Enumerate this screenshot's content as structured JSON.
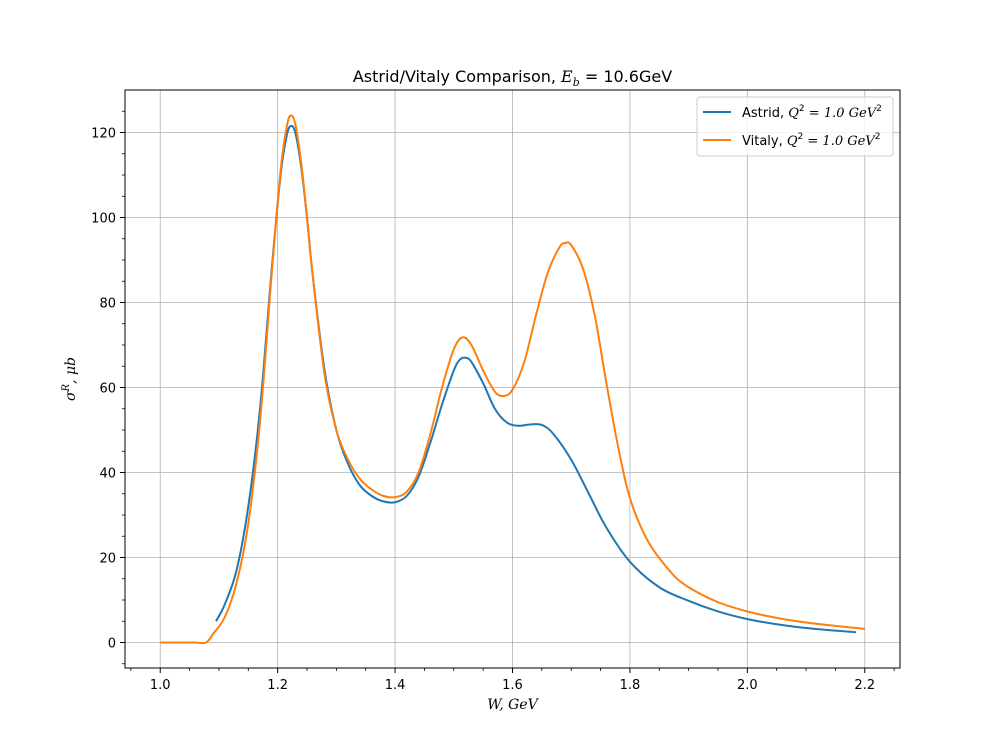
{
  "chart_data": {
    "type": "line",
    "title": "Astrid/Vitaly Comparison, E_b = 10.6GeV",
    "title_parts": {
      "text": "Astrid/Vitaly Comparison, ",
      "var": "E",
      "sub": "b",
      "rest": " = 10.6GeV"
    },
    "xlabel": "W, GeV",
    "ylabel": "σ^R, μb",
    "ylabel_parts": {
      "sym": "σ",
      "sup": "R",
      "rest": ", μb"
    },
    "xlim": [
      0.94,
      2.26
    ],
    "ylim": [
      -6,
      130
    ],
    "x_ticks": [
      1.0,
      1.2,
      1.4,
      1.6,
      1.8,
      2.0,
      2.2
    ],
    "x_tick_labels": [
      "1.0",
      "1.2",
      "1.4",
      "1.6",
      "1.8",
      "2.0",
      "2.2"
    ],
    "y_ticks": [
      0,
      20,
      40,
      60,
      80,
      100,
      120
    ],
    "y_tick_labels": [
      "0",
      "20",
      "40",
      "60",
      "80",
      "100",
      "120"
    ],
    "grid": true,
    "legend_position": "top-right",
    "series": [
      {
        "name": "Astrid, Q^2 = 1.0 GeV^2",
        "label_parts": {
          "name": "Astrid, ",
          "rest": " = 1.0 GeV"
        },
        "color": "#1f77b4",
        "points": [
          [
            1.095,
            5
          ],
          [
            1.11,
            9
          ],
          [
            1.13,
            17
          ],
          [
            1.15,
            32
          ],
          [
            1.17,
            55
          ],
          [
            1.19,
            88
          ],
          [
            1.205,
            110
          ],
          [
            1.215,
            119
          ],
          [
            1.222,
            121.5
          ],
          [
            1.23,
            120
          ],
          [
            1.24,
            112
          ],
          [
            1.25,
            100
          ],
          [
            1.26,
            86
          ],
          [
            1.28,
            64
          ],
          [
            1.3,
            50
          ],
          [
            1.32,
            42
          ],
          [
            1.34,
            37
          ],
          [
            1.36,
            34.5
          ],
          [
            1.38,
            33.2
          ],
          [
            1.4,
            33
          ],
          [
            1.42,
            34.5
          ],
          [
            1.44,
            39
          ],
          [
            1.46,
            47
          ],
          [
            1.48,
            56
          ],
          [
            1.5,
            64
          ],
          [
            1.51,
            66.5
          ],
          [
            1.52,
            67
          ],
          [
            1.53,
            66
          ],
          [
            1.55,
            61
          ],
          [
            1.57,
            55
          ],
          [
            1.59,
            51.8
          ],
          [
            1.61,
            51
          ],
          [
            1.63,
            51.3
          ],
          [
            1.65,
            51.2
          ],
          [
            1.67,
            49
          ],
          [
            1.7,
            43
          ],
          [
            1.73,
            35
          ],
          [
            1.76,
            27
          ],
          [
            1.8,
            19
          ],
          [
            1.85,
            13
          ],
          [
            1.9,
            9.8
          ],
          [
            1.95,
            7.3
          ],
          [
            2.0,
            5.5
          ],
          [
            2.05,
            4.3
          ],
          [
            2.1,
            3.4
          ],
          [
            2.15,
            2.8
          ],
          [
            2.185,
            2.4
          ]
        ]
      },
      {
        "name": "Vitaly, Q^2 = 1.0 GeV^2",
        "label_parts": {
          "name": "Vitaly, ",
          "rest": " = 1.0 GeV"
        },
        "color": "#ff7f0e",
        "points": [
          [
            1.0,
            0
          ],
          [
            1.02,
            0
          ],
          [
            1.04,
            0
          ],
          [
            1.06,
            0
          ],
          [
            1.078,
            0
          ],
          [
            1.09,
            2
          ],
          [
            1.11,
            6
          ],
          [
            1.13,
            14
          ],
          [
            1.15,
            28
          ],
          [
            1.17,
            52
          ],
          [
            1.19,
            87
          ],
          [
            1.205,
            111
          ],
          [
            1.215,
            121
          ],
          [
            1.222,
            124
          ],
          [
            1.23,
            122
          ],
          [
            1.24,
            113
          ],
          [
            1.25,
            100
          ],
          [
            1.26,
            86
          ],
          [
            1.28,
            63
          ],
          [
            1.3,
            50
          ],
          [
            1.32,
            43
          ],
          [
            1.34,
            38.5
          ],
          [
            1.36,
            36
          ],
          [
            1.38,
            34.5
          ],
          [
            1.4,
            34.2
          ],
          [
            1.42,
            35.5
          ],
          [
            1.44,
            40
          ],
          [
            1.46,
            49
          ],
          [
            1.48,
            60
          ],
          [
            1.5,
            69
          ],
          [
            1.515,
            71.8
          ],
          [
            1.53,
            70
          ],
          [
            1.55,
            64
          ],
          [
            1.57,
            59
          ],
          [
            1.585,
            58
          ],
          [
            1.6,
            59.5
          ],
          [
            1.62,
            66
          ],
          [
            1.64,
            77
          ],
          [
            1.66,
            87
          ],
          [
            1.68,
            93
          ],
          [
            1.69,
            94
          ],
          [
            1.7,
            93.5
          ],
          [
            1.72,
            88
          ],
          [
            1.74,
            77
          ],
          [
            1.76,
            61
          ],
          [
            1.78,
            46
          ],
          [
            1.8,
            34
          ],
          [
            1.83,
            24
          ],
          [
            1.87,
            16.5
          ],
          [
            1.9,
            13
          ],
          [
            1.95,
            9.5
          ],
          [
            2.0,
            7.3
          ],
          [
            2.05,
            5.8
          ],
          [
            2.1,
            4.7
          ],
          [
            2.15,
            3.9
          ],
          [
            2.2,
            3.2
          ]
        ]
      }
    ]
  }
}
